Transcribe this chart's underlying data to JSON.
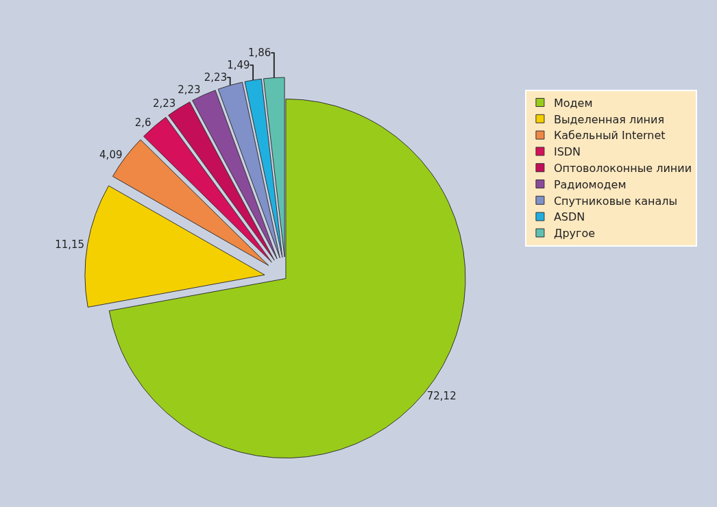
{
  "chart_data": {
    "type": "pie",
    "categories": [
      "Модем",
      "Выделенная линия",
      "Кабельный Internet",
      "ISDN",
      "Оптоволоконные линии",
      "Радиомодем",
      "Спутниковые каналы",
      "ASDN",
      "Другое"
    ],
    "values": [
      72.12,
      11.15,
      4.09,
      2.6,
      2.23,
      2.23,
      2.23,
      1.49,
      1.86
    ],
    "value_labels": [
      "72,12",
      "11,15",
      "4,09",
      "2,6",
      "2,23",
      "2,23",
      "2,23",
      "1,49",
      "1,86"
    ],
    "colors": [
      "#99cc1a",
      "#f5d000",
      "#ee8844",
      "#d6105a",
      "#c40e58",
      "#8a4a9a",
      "#8090c8",
      "#20b0e0",
      "#60c0b0"
    ],
    "legend": "top right"
  }
}
